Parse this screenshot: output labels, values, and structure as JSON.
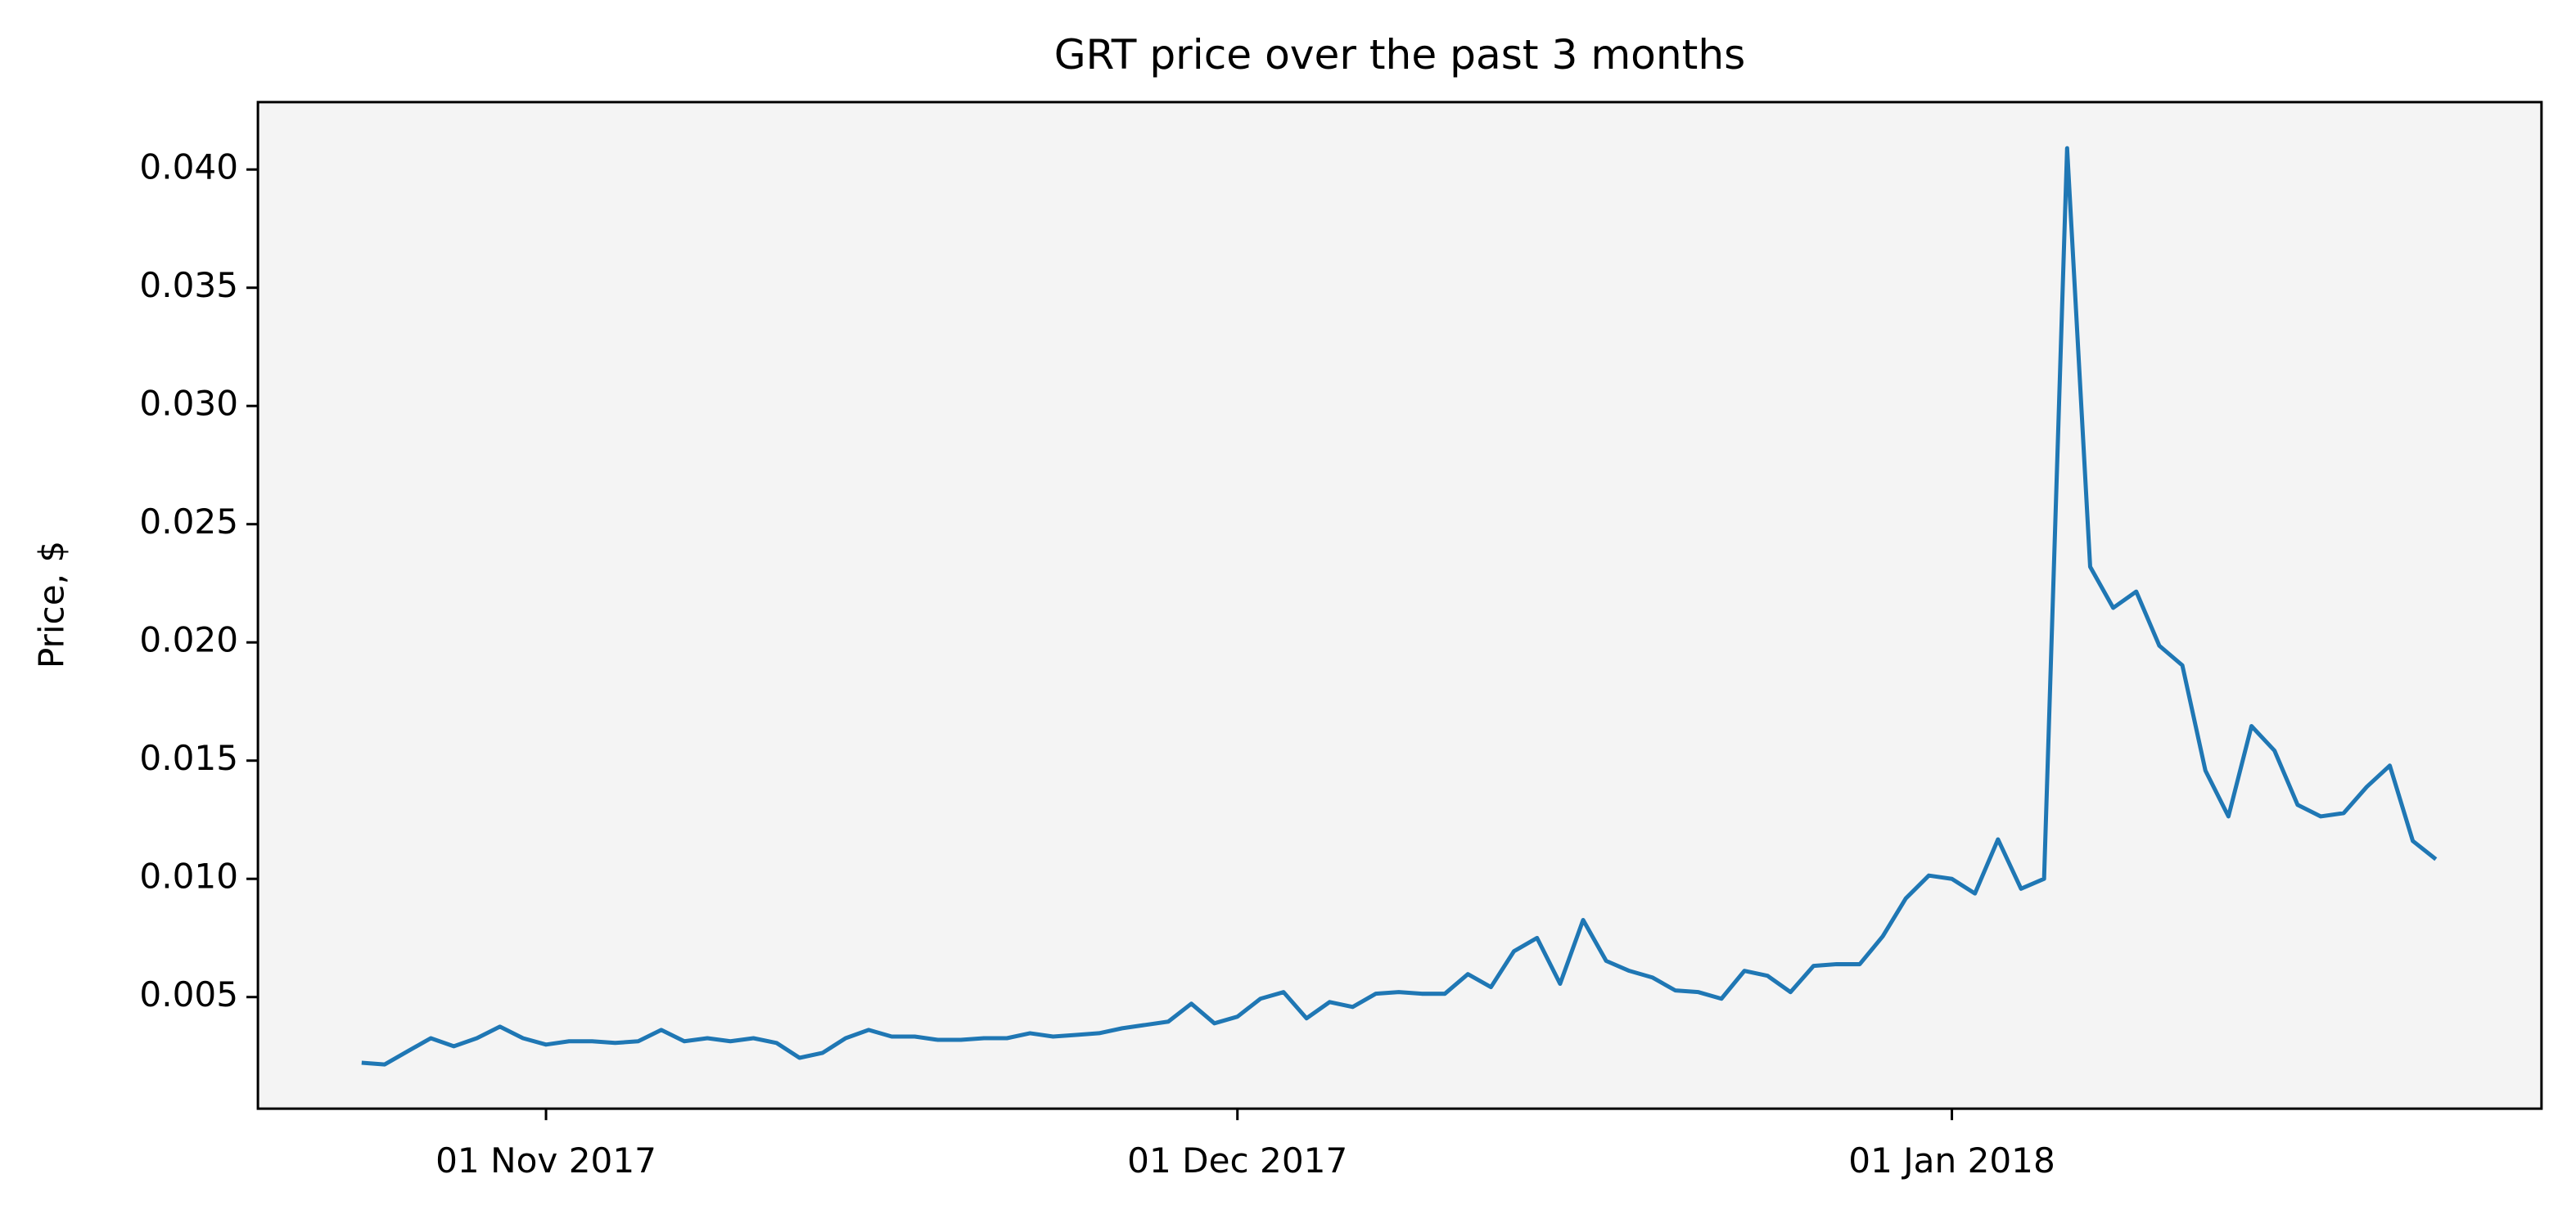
{
  "chart_data": {
    "type": "line",
    "title": "GRT price over the past 3 months",
    "y_label": "Price, $",
    "x": [
      "2017-10-24",
      "2017-10-25",
      "2017-10-26",
      "2017-10-27",
      "2017-10-28",
      "2017-10-29",
      "2017-10-30",
      "2017-10-31",
      "2017-11-01",
      "2017-11-02",
      "2017-11-03",
      "2017-11-04",
      "2017-11-05",
      "2017-11-06",
      "2017-11-07",
      "2017-11-08",
      "2017-11-09",
      "2017-11-10",
      "2017-11-11",
      "2017-11-12",
      "2017-11-13",
      "2017-11-14",
      "2017-11-15",
      "2017-11-16",
      "2017-11-17",
      "2017-11-18",
      "2017-11-19",
      "2017-11-20",
      "2017-11-21",
      "2017-11-22",
      "2017-11-23",
      "2017-11-24",
      "2017-11-25",
      "2017-11-26",
      "2017-11-27",
      "2017-11-28",
      "2017-11-29",
      "2017-11-30",
      "2017-12-01",
      "2017-12-02",
      "2017-12-03",
      "2017-12-04",
      "2017-12-05",
      "2017-12-06",
      "2017-12-07",
      "2017-12-08",
      "2017-12-09",
      "2017-12-10",
      "2017-12-11",
      "2017-12-12",
      "2017-12-13",
      "2017-12-14",
      "2017-12-15",
      "2017-12-16",
      "2017-12-17",
      "2017-12-18",
      "2017-12-19",
      "2017-12-20",
      "2017-12-21",
      "2017-12-22",
      "2017-12-23",
      "2017-12-24",
      "2017-12-25",
      "2017-12-26",
      "2017-12-27",
      "2017-12-28",
      "2017-12-29",
      "2017-12-30",
      "2017-12-31",
      "2018-01-01",
      "2018-01-02",
      "2018-01-03",
      "2018-01-04",
      "2018-01-05",
      "2018-01-06",
      "2018-01-07",
      "2018-01-08",
      "2018-01-09",
      "2018-01-10",
      "2018-01-11",
      "2018-01-12",
      "2018-01-13",
      "2018-01-14",
      "2018-01-15",
      "2018-01-16",
      "2018-01-17",
      "2018-01-18",
      "2018-01-19",
      "2018-01-20",
      "2018-01-21",
      "2018-01-22"
    ],
    "series": [
      {
        "name": "GRT",
        "color": "#1f77b4",
        "values": [
          0.00222,
          0.00215,
          0.00271,
          0.00326,
          0.00292,
          0.00326,
          0.00375,
          0.00326,
          0.00299,
          0.00313,
          0.00313,
          0.00306,
          0.00313,
          0.00361,
          0.00313,
          0.00326,
          0.00313,
          0.00326,
          0.00306,
          0.00243,
          0.00264,
          0.00326,
          0.00361,
          0.00333,
          0.00333,
          0.00319,
          0.00319,
          0.00326,
          0.00326,
          0.00347,
          0.00333,
          0.0034,
          0.00347,
          0.00368,
          0.00382,
          0.00396,
          0.00472,
          0.00389,
          0.00417,
          0.00493,
          0.00521,
          0.0041,
          0.00479,
          0.00458,
          0.00514,
          0.00521,
          0.00514,
          0.00514,
          0.00597,
          0.00542,
          0.00694,
          0.0075,
          0.00556,
          0.00826,
          0.00653,
          0.00611,
          0.00583,
          0.00528,
          0.00521,
          0.00493,
          0.00611,
          0.0059,
          0.00521,
          0.00632,
          0.00639,
          0.00639,
          0.00757,
          0.00917,
          0.01014,
          0.01,
          0.00938,
          0.01167,
          0.00958,
          0.01,
          0.0409,
          0.0232,
          0.02146,
          0.02215,
          0.01986,
          0.01903,
          0.01458,
          0.01264,
          0.01646,
          0.01542,
          0.01313,
          0.01264,
          0.01278,
          0.01389,
          0.01479,
          0.0116,
          0.01083
        ]
      }
    ],
    "xlim": [
      "2017-10-19T12:00:00Z",
      "2018-01-26T14:00:00Z"
    ],
    "xticks": [
      {
        "value": "2017-11-01",
        "label": "01 Nov 2017"
      },
      {
        "value": "2017-12-01",
        "label": "01 Dec 2017"
      },
      {
        "value": "2018-01-01",
        "label": "01 Jan 2018"
      }
    ],
    "ylim": [
      0.00028,
      0.04285
    ],
    "yticks": [
      0.005,
      {
        "value": 0.01,
        "label": "0.010"
      },
      0.015,
      {
        "value": 0.02,
        "label": "0.020"
      },
      0.025,
      {
        "value": 0.03,
        "label": "0.030"
      },
      0.035,
      {
        "value": 0.04,
        "label": "0.040"
      }
    ],
    "plot_background": "#f4f4f4"
  }
}
